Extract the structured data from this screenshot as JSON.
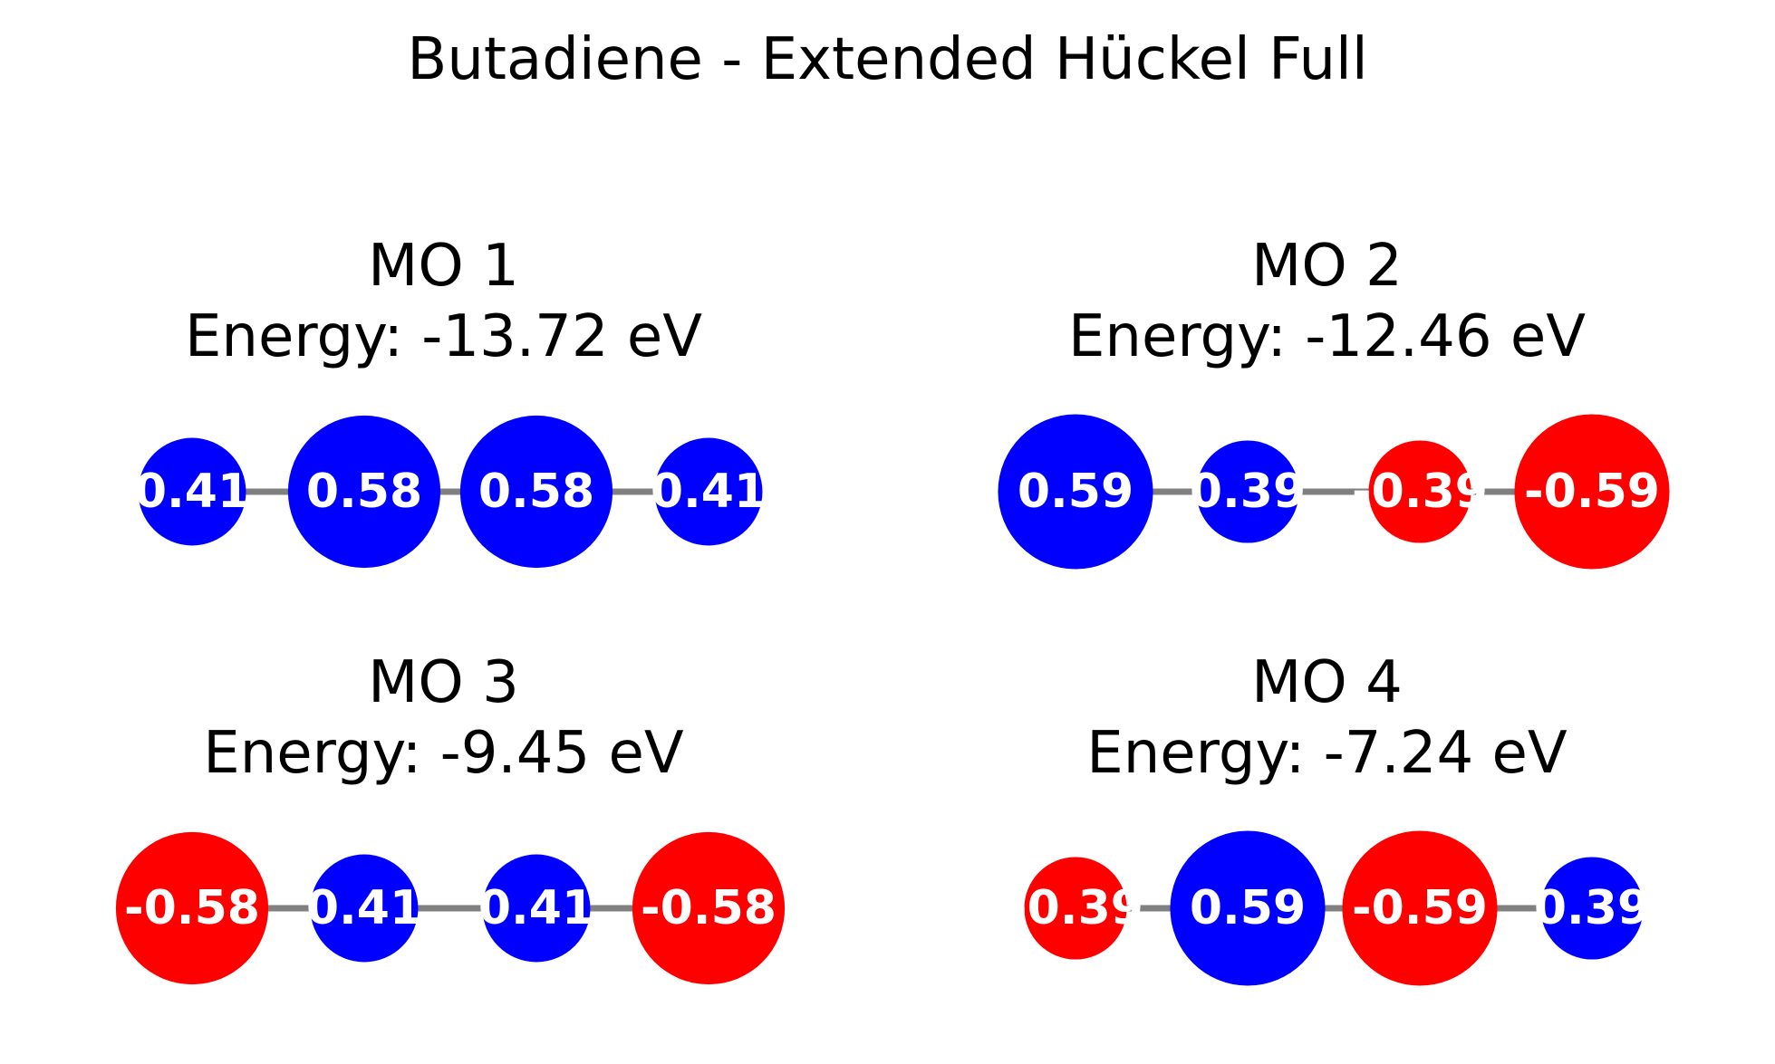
{
  "title": "Butadiene - Extended Hückel Full",
  "colors": {
    "positive": "#0000ff",
    "negative": "#ff0000",
    "bond": "#808080",
    "label": "#ffffff"
  },
  "orbitals": [
    {
      "name": "MO 1",
      "energy_label": "Energy: -13.72 eV",
      "coefficients": [
        0.41,
        0.58,
        0.58,
        0.41
      ],
      "labels": [
        "0.41",
        "0.58",
        "0.58",
        "0.41"
      ]
    },
    {
      "name": "MO 2",
      "energy_label": "Energy: -12.46 eV",
      "coefficients": [
        0.59,
        0.39,
        -0.39,
        -0.59
      ],
      "labels": [
        "0.59",
        "0.39",
        "-0.39",
        "-0.59"
      ]
    },
    {
      "name": "MO 3",
      "energy_label": "Energy: -9.45 eV",
      "coefficients": [
        -0.58,
        0.41,
        0.41,
        -0.58
      ],
      "labels": [
        "-0.58",
        "0.41",
        "0.41",
        "-0.58"
      ]
    },
    {
      "name": "MO 4",
      "energy_label": "Energy: -7.24 eV",
      "coefficients": [
        -0.39,
        0.59,
        -0.59,
        0.39
      ],
      "labels": [
        "-0.39",
        "0.59",
        "-0.59",
        "0.39"
      ]
    }
  ]
}
